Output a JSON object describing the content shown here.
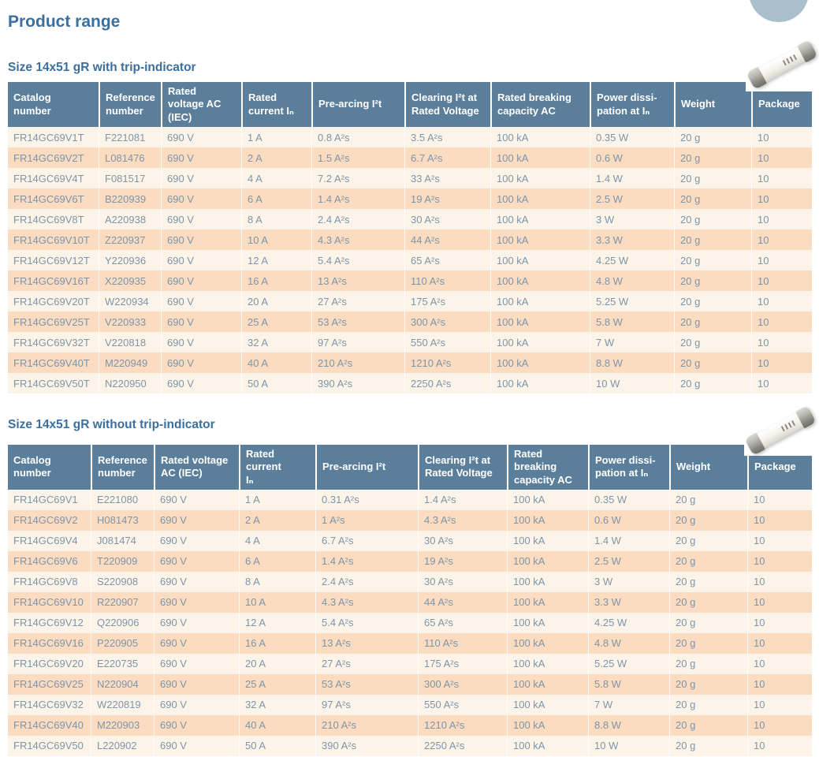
{
  "page": {
    "title": "Product range"
  },
  "colors": {
    "heading_text": "#3a6f9e",
    "table_header_bg": "#5b7e9b",
    "table_header_text": "#ffffff",
    "row_light": "#fdf4e9",
    "row_peach": "#fbdcc1",
    "cell_text": "#7d95a9",
    "corner_circle": "#a9bfcc"
  },
  "decor": {
    "corner_circle": "corner-circle-decoration",
    "product_photo": "14x51-gR-fuse-cartridge-photo"
  },
  "sections": [
    {
      "heading": "Size 14x51 gR with trip-indicator",
      "columns": [
        {
          "id": "catalog-number",
          "label": "Catalog\nnumber"
        },
        {
          "id": "reference-number",
          "label": "Reference\nnumber"
        },
        {
          "id": "rated-voltage",
          "label": "Rated\nvoltage AC\n(IEC)"
        },
        {
          "id": "rated-current",
          "label": "Rated\ncurrent Iₙ"
        },
        {
          "id": "pre-arcing-i2t",
          "label": "Pre-arcing I²t"
        },
        {
          "id": "clearing-i2t",
          "label": "Clearing I²t at\nRated Voltage"
        },
        {
          "id": "breaking-capacity",
          "label": "Rated breaking\ncapacity AC"
        },
        {
          "id": "power-dissipation",
          "label": "Power dissi-\npation at Iₙ"
        },
        {
          "id": "weight",
          "label": "Weight"
        },
        {
          "id": "package",
          "label": "Package"
        }
      ],
      "rows": [
        [
          "FR14GC69V1T",
          "F221081",
          "690 V",
          "1 A",
          "0.8 A²s",
          "3.5 A²s",
          "100 kA",
          "0.35 W",
          "20 g",
          "10"
        ],
        [
          "FR14GC69V2T",
          "L081476",
          "690 V",
          "2 A",
          "1.5 A²s",
          "6.7 A²s",
          "100 kA",
          "0.6 W",
          "20 g",
          "10"
        ],
        [
          "FR14GC69V4T",
          "F081517",
          "690 V",
          "4 A",
          "7.2 A²s",
          "33 A²s",
          "100 kA",
          "1.4 W",
          "20 g",
          "10"
        ],
        [
          "FR14GC69V6T",
          "B220939",
          "690 V",
          "6 A",
          "1.4 A²s",
          "19 A²s",
          "100 kA",
          "2.5 W",
          "20 g",
          "10"
        ],
        [
          "FR14GC69V8T",
          "A220938",
          "690 V",
          "8 A",
          "2.4 A²s",
          "30 A²s",
          "100 kA",
          "3 W",
          "20 g",
          "10"
        ],
        [
          "FR14GC69V10T",
          "Z220937",
          "690 V",
          "10 A",
          "4.3 A²s",
          "44 A²s",
          "100 kA",
          "3.3 W",
          "20 g",
          "10"
        ],
        [
          "FR14GC69V12T",
          "Y220936",
          "690 V",
          "12 A",
          "5.4 A²s",
          "65 A²s",
          "100 kA",
          "4.25 W",
          "20 g",
          "10"
        ],
        [
          "FR14GC69V16T",
          "X220935",
          "690 V",
          "16 A",
          "13 A²s",
          "110 A²s",
          "100 kA",
          "4.8 W",
          "20 g",
          "10"
        ],
        [
          "FR14GC69V20T",
          "W220934",
          "690 V",
          "20 A",
          "27 A²s",
          "175 A²s",
          "100 kA",
          "5.25 W",
          "20 g",
          "10"
        ],
        [
          "FR14GC69V25T",
          "V220933",
          "690 V",
          "25 A",
          "53 A²s",
          "300 A²s",
          "100 kA",
          "5.8 W",
          "20 g",
          "10"
        ],
        [
          "FR14GC69V32T",
          "V220818",
          "690 V",
          "32 A",
          "97 A²s",
          "550 A²s",
          "100 kA",
          "7 W",
          "20 g",
          "10"
        ],
        [
          "FR14GC69V40T",
          "M220949",
          "690 V",
          "40 A",
          "210 A²s",
          "1210 A²s",
          "100 kA",
          "8.8 W",
          "20 g",
          "10"
        ],
        [
          "FR14GC69V50T",
          "N220950",
          "690 V",
          "50 A",
          "390 A²s",
          "2250 A²s",
          "100 kA",
          "10 W",
          "20 g",
          "10"
        ]
      ]
    },
    {
      "heading": "Size 14x51 gR without trip-indicator",
      "columns": [
        {
          "id": "catalog-number",
          "label": "Catalog\nnumber"
        },
        {
          "id": "reference-number",
          "label": "Reference\nnumber"
        },
        {
          "id": "rated-voltage",
          "label": "Rated voltage\nAC (IEC)"
        },
        {
          "id": "rated-current",
          "label": "Rated current\nIₙ"
        },
        {
          "id": "pre-arcing-i2t",
          "label": "Pre-arcing I²t"
        },
        {
          "id": "clearing-i2t",
          "label": "Clearing I²t at\nRated Voltage"
        },
        {
          "id": "breaking-capacity",
          "label": "Rated breaking\ncapacity AC"
        },
        {
          "id": "power-dissipation",
          "label": "Power dissi-\npation at Iₙ"
        },
        {
          "id": "weight",
          "label": "Weight"
        },
        {
          "id": "package",
          "label": "Package"
        }
      ],
      "rows": [
        [
          "FR14GC69V1",
          "E221080",
          "690 V",
          "1 A",
          "0.31 A²s",
          "1.4 A²s",
          "100 kA",
          "0.35 W",
          "20 g",
          "10"
        ],
        [
          "FR14GC69V2",
          "H081473",
          "690 V",
          "2 A",
          "1 A²s",
          "4.3 A²s",
          "100 kA",
          "0.6 W",
          "20 g",
          "10"
        ],
        [
          "FR14GC69V4",
          "J081474",
          "690 V",
          "4 A",
          "6.7 A²s",
          "30 A²s",
          "100 kA",
          "1.4 W",
          "20 g",
          "10"
        ],
        [
          "FR14GC69V6",
          "T220909",
          "690 V",
          "6 A",
          "1.4 A²s",
          "19 A²s",
          "100 kA",
          "2.5 W",
          "20 g",
          "10"
        ],
        [
          "FR14GC69V8",
          "S220908",
          "690 V",
          "8 A",
          "2.4 A²s",
          "30 A²s",
          "100 kA",
          "3 W",
          "20 g",
          "10"
        ],
        [
          "FR14GC69V10",
          "R220907",
          "690 V",
          "10 A",
          "4.3 A²s",
          "44 A²s",
          "100 kA",
          "3.3 W",
          "20 g",
          "10"
        ],
        [
          "FR14GC69V12",
          "Q220906",
          "690 V",
          "12 A",
          "5.4 A²s",
          "65 A²s",
          "100 kA",
          "4.25 W",
          "20 g",
          "10"
        ],
        [
          "FR14GC69V16",
          "P220905",
          "690 V",
          "16 A",
          "13 A²s",
          "110 A²s",
          "100 kA",
          "4.8 W",
          "20 g",
          "10"
        ],
        [
          "FR14GC69V20",
          "E220735",
          "690 V",
          "20 A",
          "27 A²s",
          "175 A²s",
          "100 kA",
          "5.25 W",
          "20 g",
          "10"
        ],
        [
          "FR14GC69V25",
          "N220904",
          "690 V",
          "25 A",
          "53 A²s",
          "300 A²s",
          "100 kA",
          "5.8 W",
          "20 g",
          "10"
        ],
        [
          "FR14GC69V32",
          "W220819",
          "690 V",
          "32 A",
          "97 A²s",
          "550 A²s",
          "100 kA",
          "7 W",
          "20 g",
          "10"
        ],
        [
          "FR14GC69V40",
          "M220903",
          "690 V",
          "40 A",
          "210 A²s",
          "1210 A²s",
          "100 kA",
          "8.8 W",
          "20 g",
          "10"
        ],
        [
          "FR14GC69V50",
          "L220902",
          "690 V",
          "50 A",
          "390 A²s",
          "2250 A²s",
          "100 kA",
          "10 W",
          "20 g",
          "10"
        ]
      ]
    }
  ]
}
